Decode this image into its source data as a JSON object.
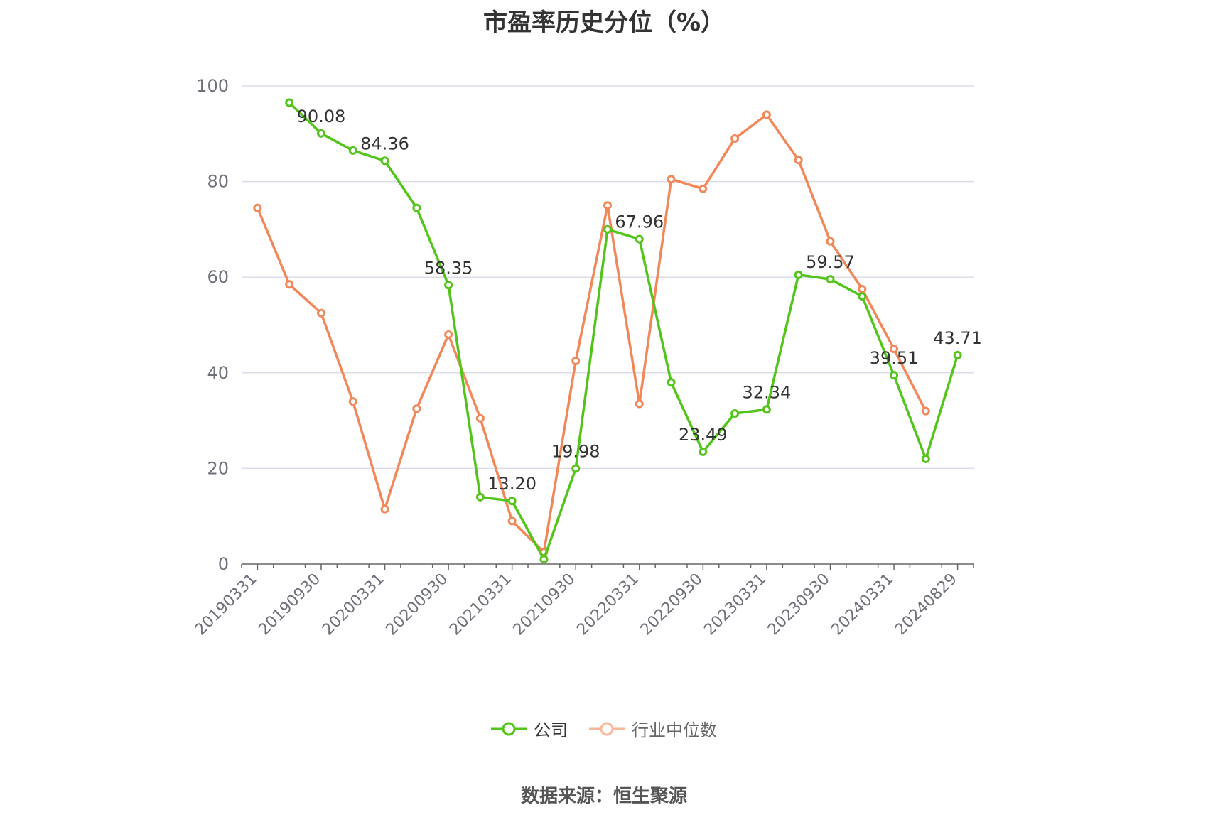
{
  "title": "市盈率历史分位（%）",
  "source": "数据来源：恒生聚源",
  "colors": {
    "company": "#52c41a",
    "industry": "#f2875a",
    "grid": "#dcdde8",
    "axis": "#666666"
  },
  "chart_data": {
    "type": "line",
    "title": "市盈率历史分位（%）",
    "ylim": [
      0,
      100
    ],
    "yticks": [
      0,
      20,
      40,
      60,
      80,
      100
    ],
    "x_tick_labels": [
      "20190331",
      "20190930",
      "20200331",
      "20200930",
      "20210331",
      "20210930",
      "20220331",
      "20220930",
      "20230331",
      "20230930",
      "20240331",
      "20240829"
    ],
    "x_points": 23,
    "x_tick_every": 2,
    "grid": true,
    "legend_position": "bottom",
    "series": [
      {
        "name": "公司",
        "color": "#52c41a",
        "values": [
          null,
          96.5,
          90.08,
          86.5,
          84.36,
          74.5,
          58.35,
          14.0,
          13.2,
          1.0,
          19.98,
          70.0,
          67.96,
          38.0,
          23.49,
          31.5,
          32.34,
          60.5,
          59.57,
          56.0,
          39.51,
          22.0,
          43.71
        ],
        "labels": [
          null,
          null,
          "90.08",
          null,
          "84.36",
          null,
          "58.35",
          null,
          "13.20",
          null,
          "19.98",
          null,
          "67.96",
          null,
          "23.49",
          null,
          "32.34",
          null,
          "59.57",
          null,
          "39.51",
          null,
          "43.71"
        ]
      },
      {
        "name": "行业中位数",
        "color": "#f2875a",
        "values": [
          74.5,
          58.5,
          52.5,
          34.0,
          11.5,
          32.5,
          48.0,
          30.5,
          9.0,
          2.5,
          42.5,
          75.0,
          33.5,
          80.5,
          78.5,
          89.0,
          94.0,
          84.5,
          67.5,
          57.5,
          45.0,
          32.0,
          null
        ]
      }
    ]
  }
}
